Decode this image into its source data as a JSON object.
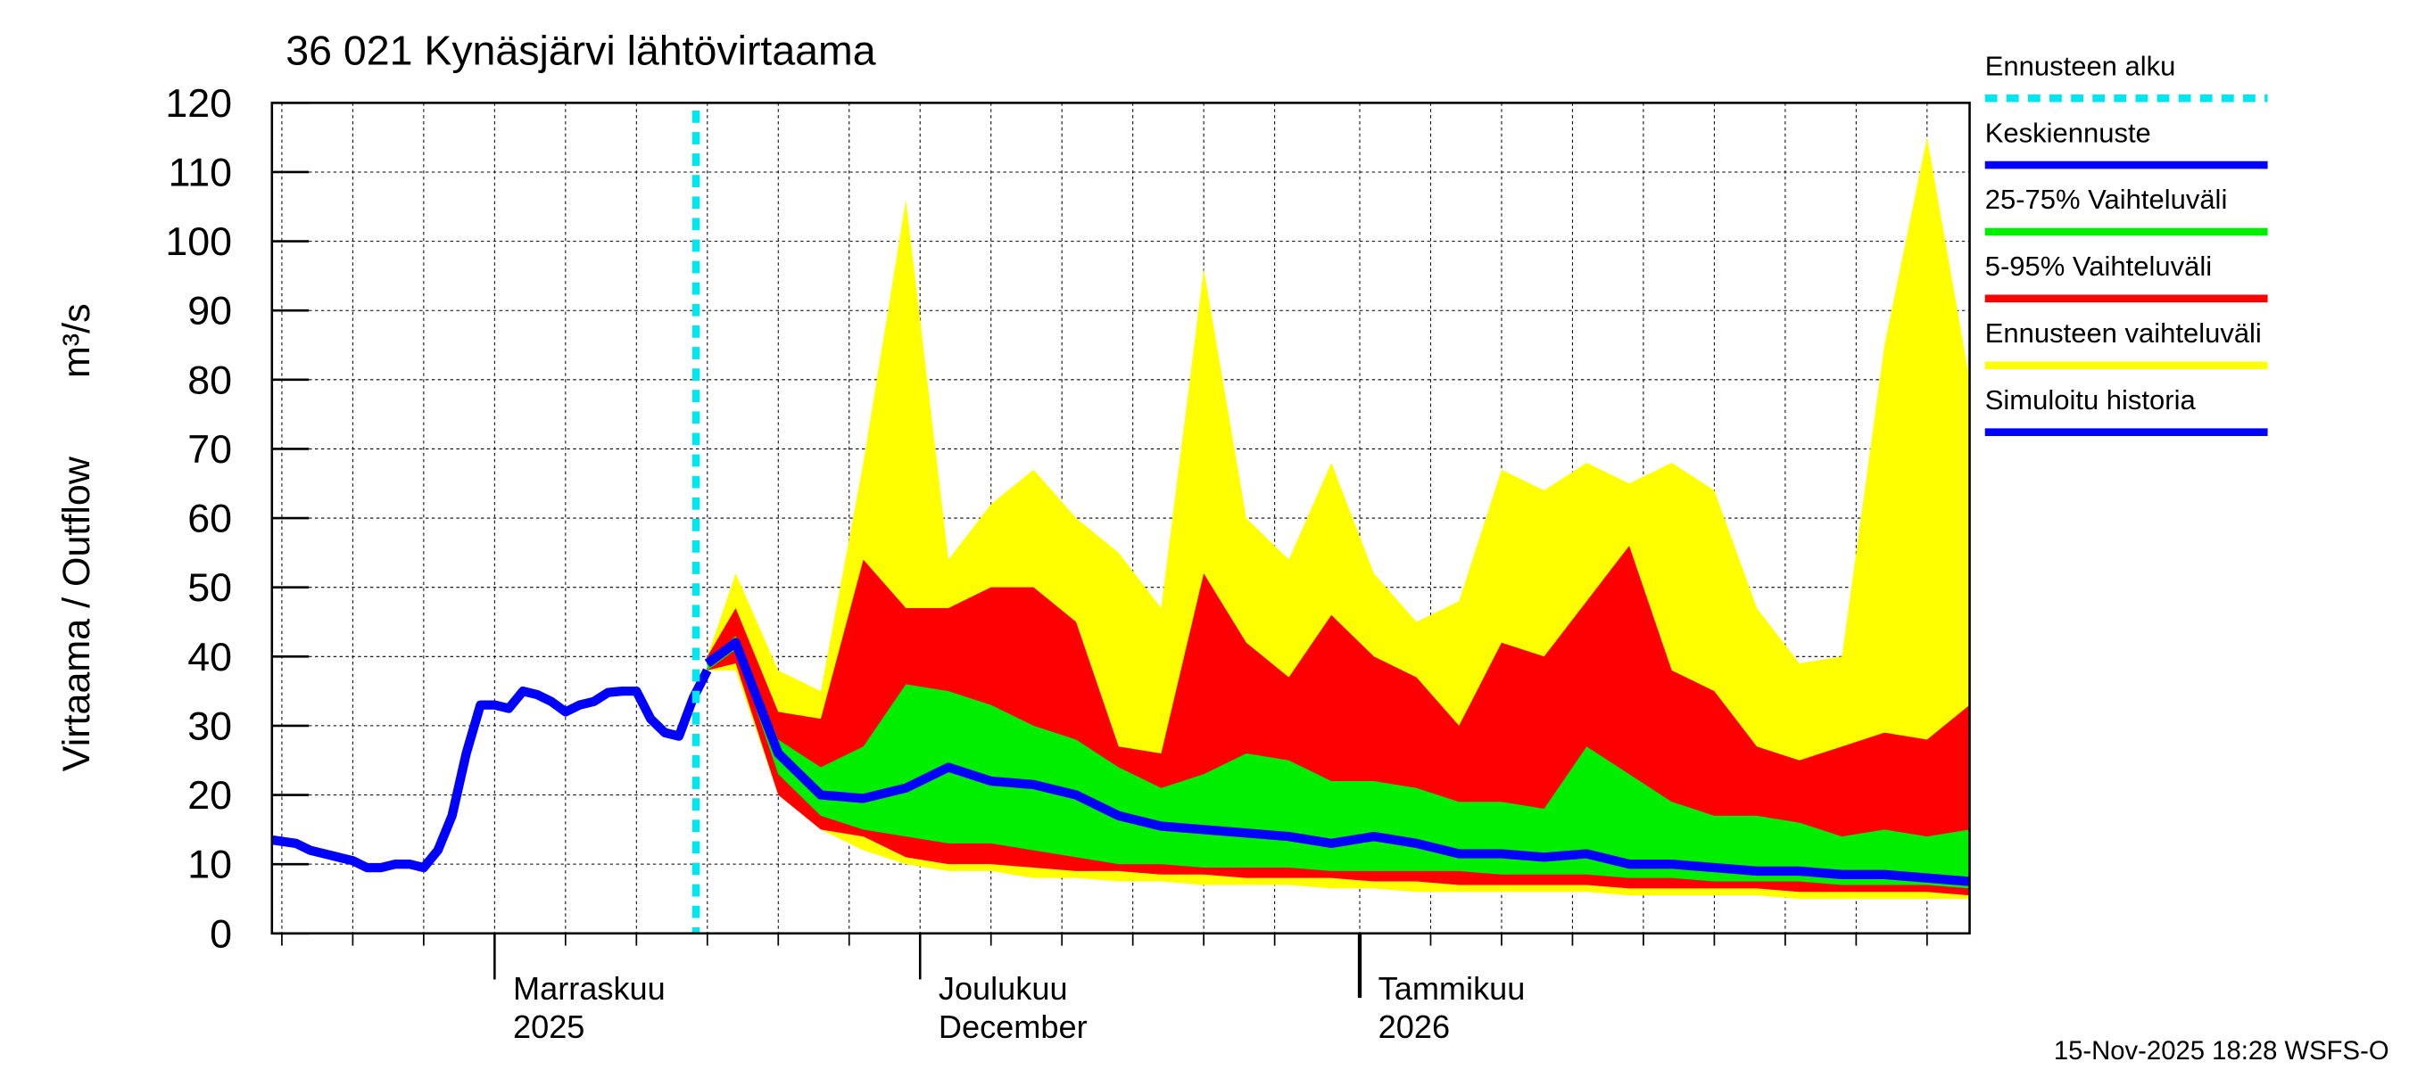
{
  "chart_data": {
    "type": "forecast_bands",
    "title": "36 021 Kynäsjärvi lähtövirtaama",
    "ylabel": "Virtaama / Outflow",
    "yunit": "m³/s",
    "footer": "15-Nov-2025 18:28 WSFS-O",
    "xlim": [
      -15.7,
      104
    ],
    "xticks": [
      {
        "value": 0,
        "label": "Marraskuu",
        "sublabel": "2025"
      },
      {
        "value": 30,
        "label": "Joulukuu",
        "sublabel": "December"
      },
      {
        "value": 61,
        "label": "Tammikuu",
        "sublabel": "2026"
      }
    ],
    "xminor": [
      -15,
      -10,
      -5,
      5,
      10,
      15,
      20,
      25,
      35,
      40,
      45,
      50,
      55,
      66,
      71,
      76,
      81,
      86,
      91,
      96,
      101
    ],
    "ylim": [
      0,
      120
    ],
    "yticks": [
      0,
      10,
      20,
      30,
      40,
      50,
      60,
      70,
      80,
      90,
      100,
      110,
      120
    ],
    "grid": true,
    "forecast_start": {
      "name": "Ennusteen alku",
      "color": "#00e5ee",
      "x": 14.2
    },
    "forecast_x": [
      15,
      17,
      20,
      23,
      26,
      29,
      32,
      35,
      38,
      41,
      44,
      47,
      50,
      53,
      56,
      59,
      62,
      65,
      68,
      71,
      74,
      77,
      80,
      83,
      86,
      89,
      92,
      95,
      98,
      101,
      104
    ],
    "series": [
      {
        "name": "Keskiennuste",
        "color": "#0000ff",
        "values": [
          39,
          42,
          26,
          20,
          19.5,
          21,
          24,
          22,
          21.5,
          20,
          17,
          15.5,
          15,
          14.5,
          14,
          13,
          14,
          13,
          11.5,
          11.5,
          11,
          11.5,
          10,
          10,
          9.5,
          9,
          9,
          8.5,
          8.5,
          8,
          7.5
        ]
      },
      {
        "name": "Simuloitu historia",
        "color": "#0000ff",
        "x": [
          -15.7,
          -14,
          -13,
          -12,
          -11,
          -10,
          -9,
          -8,
          -7,
          -6,
          -5,
          -4,
          -3,
          -2,
          -1,
          0,
          1,
          2,
          3,
          4,
          5,
          6,
          7,
          8,
          9,
          10,
          11,
          12,
          13,
          14,
          15
        ],
        "values": [
          13.5,
          13,
          12,
          11.5,
          11,
          10.5,
          9.5,
          9.5,
          10,
          10,
          9.5,
          12,
          17,
          26,
          33,
          33,
          32.5,
          35,
          34.5,
          33.5,
          32,
          33,
          33.5,
          34.8,
          35,
          35,
          31,
          29,
          28.5,
          34,
          38
        ]
      }
    ],
    "bands": [
      {
        "name": "Ennusteen vaihteluväli",
        "color": "#ffff00",
        "low": [
          38,
          38,
          20,
          15,
          12,
          10,
          9,
          9,
          8,
          8,
          7.5,
          7.5,
          7,
          7,
          7,
          6.5,
          6.5,
          6,
          6,
          6,
          6,
          6,
          5.5,
          5.5,
          5.5,
          5.5,
          5,
          5,
          5,
          5,
          5
        ],
        "high": [
          40,
          52,
          38,
          35,
          68,
          106,
          54,
          62,
          67,
          60,
          55,
          47,
          96,
          60,
          54,
          68,
          52,
          45,
          48,
          67,
          64,
          68,
          65,
          68,
          64,
          47,
          39,
          40,
          85,
          115,
          80
        ]
      },
      {
        "name": "5-95% Vaihteluväli",
        "color": "#ff0000",
        "low": [
          38,
          39,
          20,
          15,
          14,
          11,
          10,
          10,
          9.5,
          9,
          9,
          8.5,
          8.5,
          8,
          8,
          8,
          7.5,
          7.5,
          7,
          7,
          7,
          7,
          6.5,
          6.5,
          6.5,
          6.5,
          6,
          6,
          6,
          6,
          5.5
        ],
        "high": [
          40,
          47,
          32,
          31,
          54,
          47,
          47,
          50,
          50,
          45,
          27,
          26,
          52,
          42,
          37,
          46,
          40,
          37,
          30,
          42,
          40,
          48,
          56,
          38,
          35,
          27,
          25,
          27,
          29,
          28,
          33
        ]
      },
      {
        "name": "25-75% Vaihteluväli",
        "color": "#00ee00",
        "low": [
          38,
          41,
          23,
          17,
          15,
          14,
          13,
          13,
          12,
          11,
          10,
          10,
          9.5,
          9.5,
          9.5,
          9,
          9,
          9,
          9,
          8.5,
          8.5,
          8.5,
          8,
          8,
          7.5,
          7.5,
          7.5,
          7,
          7,
          7,
          6.5
        ],
        "high": [
          39,
          43,
          28,
          24,
          27,
          36,
          35,
          33,
          30,
          28,
          24,
          21,
          23,
          26,
          25,
          22,
          22,
          21,
          19,
          19,
          18,
          27,
          23,
          19,
          17,
          17,
          16,
          14,
          15,
          14,
          15
        ]
      }
    ],
    "legend_order": [
      "forecast_start",
      "series.0",
      "bands.2",
      "bands.1",
      "bands.0",
      "series.1"
    ]
  }
}
